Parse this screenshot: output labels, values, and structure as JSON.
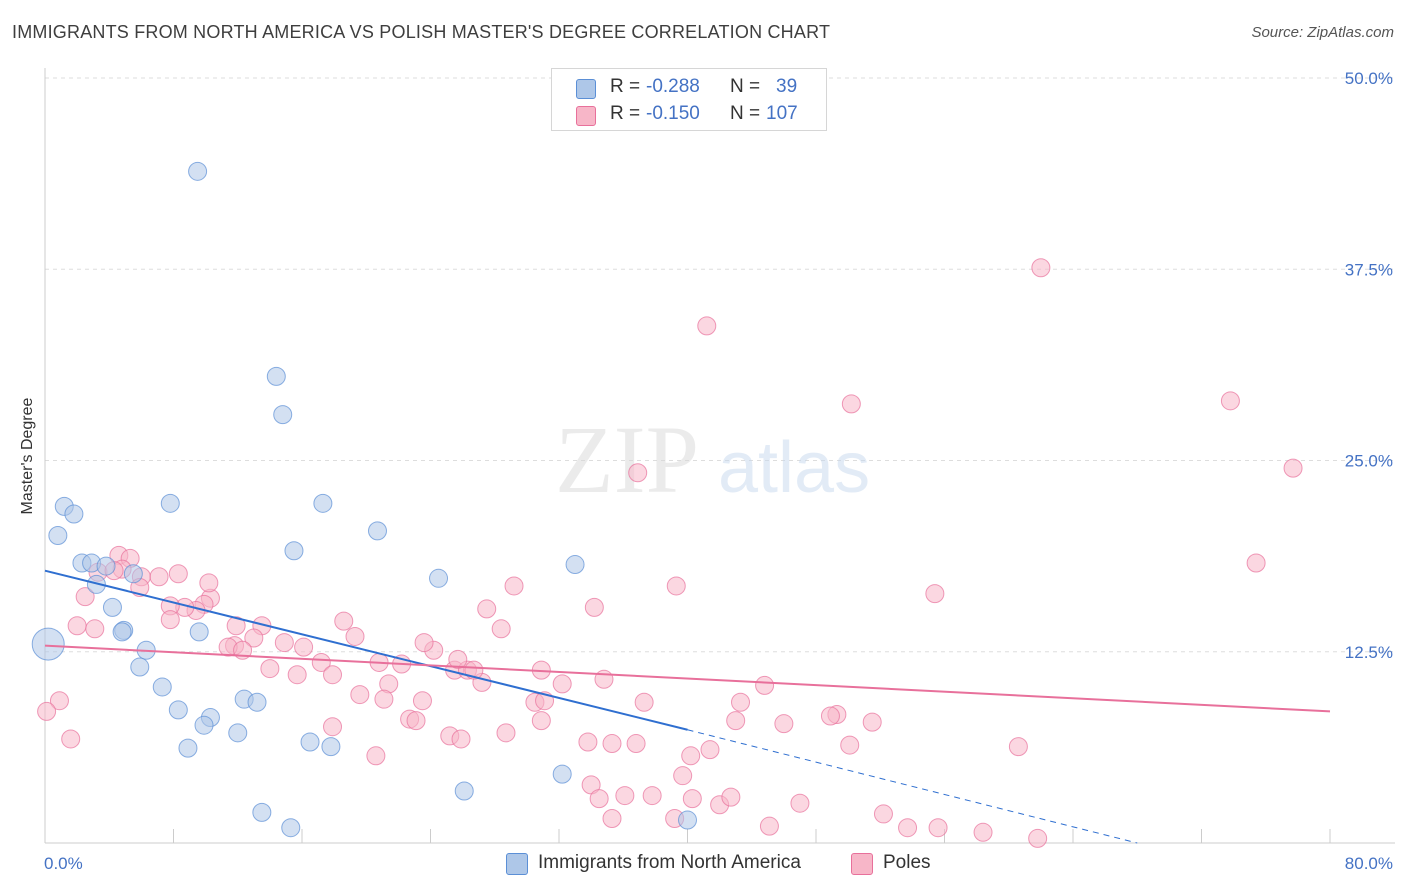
{
  "title": "IMMIGRANTS FROM NORTH AMERICA VS POLISH MASTER'S DEGREE CORRELATION CHART",
  "source": "Source: ZipAtlas.com",
  "watermark": {
    "zip": "ZIP",
    "atlas": "atlas"
  },
  "legend": {
    "rows": [
      {
        "r_label": "R =",
        "r_value": "-0.288",
        "n_label": "N =",
        "n_value": "39",
        "color": "#aec7e8"
      },
      {
        "r_label": "R =",
        "r_value": "-0.150",
        "n_label": "N =",
        "n_value": "107",
        "color": "#f7b6c8"
      }
    ]
  },
  "bottom_legend": [
    {
      "label": "Immigrants from North America",
      "color": "#aec7e8"
    },
    {
      "label": "Poles",
      "color": "#f7b6c8"
    }
  ],
  "chart_data": {
    "type": "scatter",
    "ylabel": "Master's Degree",
    "xlim": [
      0,
      80
    ],
    "ylim": [
      0,
      50
    ],
    "x_tick_labels": [
      "0.0%",
      "80.0%"
    ],
    "y_ticks": [
      12.5,
      25.0,
      37.5,
      50.0
    ],
    "y_tick_labels": [
      "12.5%",
      "25.0%",
      "37.5%",
      "50.0%"
    ],
    "grid": true,
    "series": [
      {
        "name": "Immigrants from North America",
        "color": "#5b8fd6",
        "fill": "#aec7e8",
        "trend": {
          "x0": 0,
          "y0": 17.8,
          "x1": 40,
          "y1": 7.4,
          "dash_to_x": 68,
          "dash_to_y": 0
        },
        "points": [
          [
            9.5,
            43.9,
            1
          ],
          [
            14.4,
            30.5,
            1
          ],
          [
            14.8,
            28.0,
            1
          ],
          [
            1.2,
            22.0,
            1
          ],
          [
            1.8,
            21.5,
            1
          ],
          [
            7.8,
            22.2,
            1
          ],
          [
            17.3,
            22.2,
            1
          ],
          [
            0.8,
            20.1,
            1
          ],
          [
            20.7,
            20.4,
            1
          ],
          [
            15.5,
            19.1,
            1
          ],
          [
            2.3,
            18.3,
            1
          ],
          [
            2.9,
            18.3,
            1
          ],
          [
            5.5,
            17.6,
            1
          ],
          [
            3.8,
            18.1,
            1
          ],
          [
            24.5,
            17.3,
            1
          ],
          [
            33.0,
            18.2,
            1
          ],
          [
            3.2,
            16.9,
            1
          ],
          [
            4.2,
            15.4,
            1
          ],
          [
            4.9,
            13.9,
            1
          ],
          [
            4.8,
            13.8,
            1
          ],
          [
            9.6,
            13.8,
            1
          ],
          [
            6.3,
            12.6,
            1
          ],
          [
            5.9,
            11.5,
            1
          ],
          [
            0.2,
            13.0,
            2
          ],
          [
            7.3,
            10.2,
            1
          ],
          [
            8.3,
            8.7,
            1
          ],
          [
            12.4,
            9.4,
            1
          ],
          [
            13.2,
            9.2,
            1
          ],
          [
            10.3,
            8.2,
            1
          ],
          [
            9.9,
            7.7,
            1
          ],
          [
            12.0,
            7.2,
            1
          ],
          [
            8.9,
            6.2,
            1
          ],
          [
            16.5,
            6.6,
            1
          ],
          [
            17.8,
            6.3,
            1
          ],
          [
            26.1,
            3.4,
            1
          ],
          [
            32.2,
            4.5,
            1
          ],
          [
            13.5,
            2.0,
            1
          ],
          [
            15.3,
            1.0,
            1
          ],
          [
            40.0,
            1.5,
            1
          ]
        ]
      },
      {
        "name": "Poles",
        "color": "#e8709b",
        "fill": "#f7b6c8",
        "trend": {
          "x0": 0,
          "y0": 12.9,
          "x1": 80,
          "y1": 8.6
        },
        "points": [
          [
            62.0,
            37.6,
            1
          ],
          [
            41.2,
            33.8,
            1
          ],
          [
            50.2,
            28.7,
            1
          ],
          [
            73.8,
            28.9,
            1
          ],
          [
            77.7,
            24.5,
            1
          ],
          [
            36.9,
            24.2,
            1
          ],
          [
            75.4,
            18.3,
            1
          ],
          [
            4.6,
            18.8,
            1
          ],
          [
            5.3,
            18.6,
            1
          ],
          [
            3.3,
            17.7,
            1
          ],
          [
            4.8,
            17.9,
            1
          ],
          [
            6.0,
            17.4,
            1
          ],
          [
            8.3,
            17.6,
            1
          ],
          [
            7.1,
            17.4,
            1
          ],
          [
            5.9,
            16.7,
            1
          ],
          [
            2.5,
            16.1,
            1
          ],
          [
            10.3,
            16.0,
            1
          ],
          [
            9.9,
            15.6,
            1
          ],
          [
            9.4,
            15.2,
            1
          ],
          [
            8.7,
            15.4,
            1
          ],
          [
            7.8,
            15.5,
            1
          ],
          [
            2.0,
            14.2,
            1
          ],
          [
            7.8,
            14.6,
            1
          ],
          [
            11.9,
            14.2,
            1
          ],
          [
            13.5,
            14.2,
            1
          ],
          [
            13.0,
            13.4,
            1
          ],
          [
            18.6,
            14.5,
            1
          ],
          [
            19.3,
            13.5,
            1
          ],
          [
            11.8,
            12.9,
            1
          ],
          [
            11.4,
            12.8,
            1
          ],
          [
            12.3,
            12.6,
            1
          ],
          [
            14.9,
            13.1,
            1
          ],
          [
            16.1,
            12.8,
            1
          ],
          [
            17.2,
            11.8,
            1
          ],
          [
            20.8,
            11.8,
            1
          ],
          [
            22.2,
            11.7,
            1
          ],
          [
            24.2,
            12.6,
            1
          ],
          [
            15.7,
            11.0,
            1
          ],
          [
            14.0,
            11.4,
            1
          ],
          [
            17.9,
            11.0,
            1
          ],
          [
            21.4,
            10.4,
            1
          ],
          [
            25.5,
            11.3,
            1
          ],
          [
            26.3,
            11.3,
            1
          ],
          [
            27.2,
            10.5,
            1
          ],
          [
            29.2,
            16.8,
            1
          ],
          [
            27.5,
            15.3,
            1
          ],
          [
            34.2,
            15.4,
            1
          ],
          [
            39.3,
            16.8,
            1
          ],
          [
            55.4,
            16.3,
            1
          ],
          [
            30.9,
            11.3,
            1
          ],
          [
            30.5,
            9.2,
            1
          ],
          [
            31.1,
            9.3,
            1
          ],
          [
            32.2,
            10.4,
            1
          ],
          [
            34.8,
            10.7,
            1
          ],
          [
            37.3,
            9.2,
            1
          ],
          [
            43.3,
            9.2,
            1
          ],
          [
            44.8,
            10.3,
            1
          ],
          [
            49.3,
            8.4,
            1
          ],
          [
            51.5,
            7.9,
            1
          ],
          [
            3.1,
            14.0,
            1
          ],
          [
            0.9,
            9.3,
            1
          ],
          [
            1.6,
            6.8,
            1
          ],
          [
            0.1,
            8.6,
            1
          ],
          [
            17.9,
            7.6,
            1
          ],
          [
            19.6,
            9.7,
            1
          ],
          [
            21.1,
            9.4,
            1
          ],
          [
            22.7,
            8.1,
            1
          ],
          [
            23.5,
            9.3,
            1
          ],
          [
            23.1,
            8.0,
            1
          ],
          [
            25.2,
            7.0,
            1
          ],
          [
            25.9,
            6.8,
            1
          ],
          [
            28.7,
            7.2,
            1
          ],
          [
            30.9,
            8.0,
            1
          ],
          [
            33.8,
            6.6,
            1
          ],
          [
            35.3,
            6.5,
            1
          ],
          [
            36.8,
            6.5,
            1
          ],
          [
            40.2,
            5.7,
            1
          ],
          [
            41.4,
            6.1,
            1
          ],
          [
            43.0,
            8.0,
            1
          ],
          [
            46.0,
            7.8,
            1
          ],
          [
            48.9,
            8.3,
            1
          ],
          [
            50.1,
            6.4,
            1
          ],
          [
            60.6,
            6.3,
            1
          ],
          [
            20.6,
            5.7,
            1
          ],
          [
            34.0,
            3.8,
            1
          ],
          [
            34.5,
            2.9,
            1
          ],
          [
            36.1,
            3.1,
            1
          ],
          [
            37.8,
            3.1,
            1
          ],
          [
            39.7,
            4.4,
            1
          ],
          [
            40.3,
            2.9,
            1
          ],
          [
            42.0,
            2.5,
            1
          ],
          [
            42.7,
            3.0,
            1
          ],
          [
            47.0,
            2.6,
            1
          ],
          [
            35.3,
            1.6,
            1
          ],
          [
            39.2,
            1.6,
            1
          ],
          [
            45.1,
            1.1,
            1
          ],
          [
            52.2,
            1.9,
            1
          ],
          [
            53.7,
            1.0,
            1
          ],
          [
            55.6,
            1.0,
            1
          ],
          [
            58.4,
            0.7,
            1
          ],
          [
            61.8,
            0.3,
            1
          ],
          [
            4.3,
            17.8,
            1
          ],
          [
            10.2,
            17.0,
            1
          ],
          [
            28.4,
            14.0,
            1
          ],
          [
            23.6,
            13.1,
            1
          ],
          [
            26.7,
            11.3,
            1
          ],
          [
            25.7,
            12.0,
            1
          ]
        ]
      }
    ]
  }
}
